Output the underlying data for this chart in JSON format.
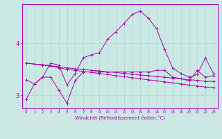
{
  "xlabel": "Windchill (Refroidissement éolien,°C)",
  "background_color": "#cce8e4",
  "grid_color": "#aad8d4",
  "line_color": "#aa00aa",
  "xlim": [
    -0.5,
    23.5
  ],
  "ylim": [
    2.75,
    4.75
  ],
  "yticks": [
    3,
    4
  ],
  "xticks": [
    0,
    1,
    2,
    3,
    4,
    5,
    6,
    7,
    8,
    9,
    10,
    11,
    12,
    13,
    14,
    15,
    16,
    17,
    18,
    19,
    20,
    21,
    22,
    23
  ],
  "line1": [
    2.93,
    3.22,
    3.35,
    3.62,
    3.58,
    3.2,
    3.42,
    3.72,
    3.78,
    3.82,
    4.08,
    4.22,
    4.38,
    4.55,
    4.62,
    4.48,
    4.28,
    3.88,
    3.52,
    3.42,
    3.35,
    3.4,
    3.72,
    3.42
  ],
  "line2": [
    3.62,
    3.6,
    3.58,
    3.56,
    3.53,
    3.5,
    3.48,
    3.46,
    3.44,
    3.42,
    3.4,
    3.38,
    3.36,
    3.34,
    3.32,
    3.3,
    3.28,
    3.26,
    3.24,
    3.22,
    3.2,
    3.18,
    3.16,
    3.15
  ],
  "line3": [
    3.62,
    3.6,
    3.59,
    3.57,
    3.55,
    3.53,
    3.51,
    3.5,
    3.48,
    3.47,
    3.45,
    3.44,
    3.42,
    3.41,
    3.39,
    3.38,
    3.36,
    3.35,
    3.33,
    3.32,
    3.3,
    3.29,
    3.27,
    3.27
  ],
  "line4": [
    3.3,
    3.22,
    3.35,
    3.35,
    3.1,
    2.85,
    3.28,
    3.45,
    3.45,
    3.45,
    3.45,
    3.45,
    3.45,
    3.45,
    3.45,
    3.45,
    3.48,
    3.48,
    3.35,
    3.32,
    3.28,
    3.48,
    3.35,
    3.38
  ]
}
